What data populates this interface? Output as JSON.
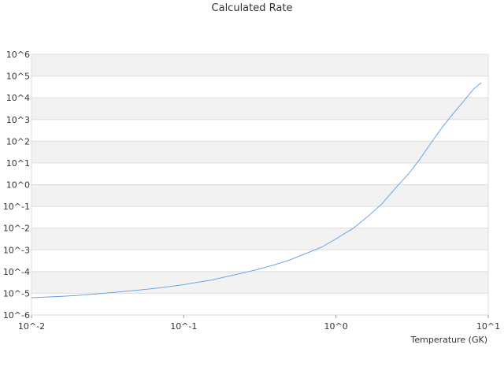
{
  "chart_data": {
    "type": "line",
    "title": "Calculated Rate",
    "xlabel": "Temperature (GK)",
    "ylabel": "",
    "xscale": "log",
    "yscale": "log",
    "xlim": [
      0.01,
      10
    ],
    "ylim": [
      1e-06,
      1000000.0
    ],
    "grid": "alternating horizontal bands",
    "legend": "none",
    "x_tick_labels": [
      "10^-2",
      "10^-1",
      "10^0",
      "10^1"
    ],
    "y_tick_labels": [
      "10^-6",
      "10^-5",
      "10^-4",
      "10^-3",
      "10^-2",
      "10^-1",
      "10^0",
      "10^1",
      "10^2",
      "10^3",
      "10^4",
      "10^5",
      "10^6"
    ],
    "colors": {
      "line": "#5a9ee6",
      "band": "#f2f2f2",
      "plot_border": "#dddddd",
      "text": "#333333"
    },
    "series": [
      {
        "x": [
          0.01,
          0.015,
          0.02,
          0.03,
          0.05,
          0.07,
          0.1,
          0.15,
          0.2,
          0.3,
          0.4,
          0.5,
          0.6,
          0.8,
          1.0,
          1.3,
          1.6,
          2.0,
          2.5,
          3.0,
          3.5,
          4.0,
          5.0,
          6.0,
          7.0,
          8.0,
          9.0
        ],
        "y": [
          6.3e-06,
          7.1e-06,
          7.9e-06,
          1e-05,
          1.4e-05,
          1.8e-05,
          2.5e-05,
          4e-05,
          6.3e-05,
          0.00012,
          0.00021,
          0.00035,
          0.00058,
          0.0013,
          0.0032,
          0.01,
          0.032,
          0.13,
          0.79,
          3.2,
          13,
          50,
          450,
          2200,
          8000,
          25000,
          50000
        ]
      }
    ]
  }
}
